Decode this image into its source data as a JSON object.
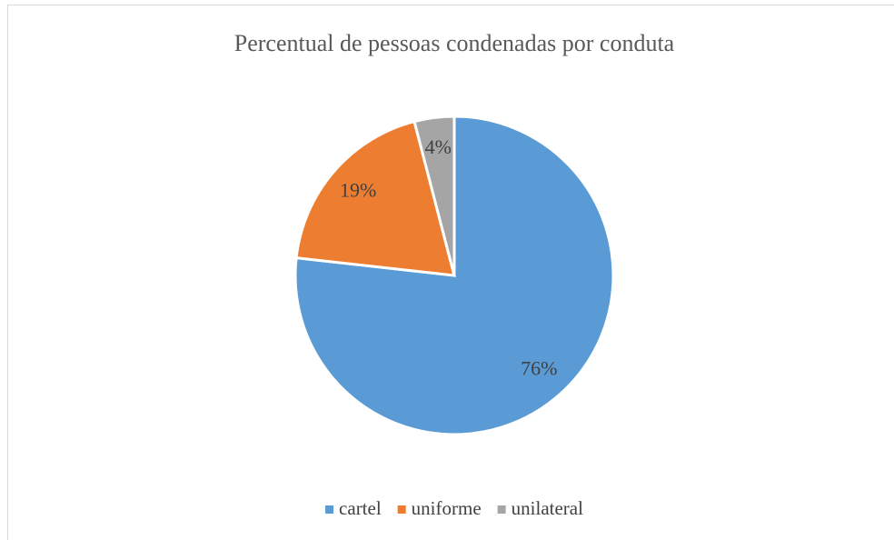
{
  "chart_data": {
    "type": "pie",
    "title": "Percentual de pessoas condenadas por conduta",
    "categories": [
      "cartel",
      "uniforme",
      "unilateral"
    ],
    "values": [
      76,
      19,
      4
    ],
    "value_labels": [
      "76%",
      "19%",
      "4%"
    ],
    "colors": [
      "#5b9bd5",
      "#ed7d31",
      "#a5a5a5"
    ],
    "legend": "bottom"
  }
}
